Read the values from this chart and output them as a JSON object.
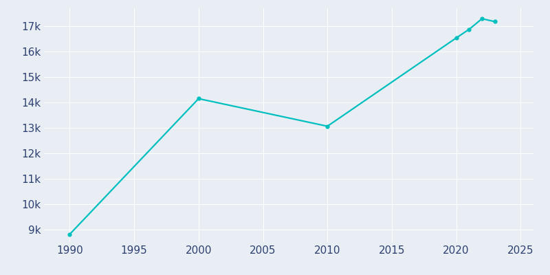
{
  "years": [
    1990,
    2000,
    2010,
    2020,
    2021,
    2022,
    2023
  ],
  "population": [
    8806,
    14142,
    13056,
    16531,
    16869,
    17288,
    17174
  ],
  "line_color": "#00BFBF",
  "marker_color": "#00BFBF",
  "bg_color": "#E8EEF4",
  "grid_color": "#FFFFFF",
  "tick_label_color": "#2E4070",
  "xlim": [
    1988,
    2026
  ],
  "ylim": [
    8500,
    17700
  ],
  "xticks": [
    1990,
    1995,
    2000,
    2005,
    2010,
    2015,
    2020,
    2025
  ],
  "yticks": [
    9000,
    10000,
    11000,
    12000,
    13000,
    14000,
    15000,
    16000,
    17000
  ]
}
